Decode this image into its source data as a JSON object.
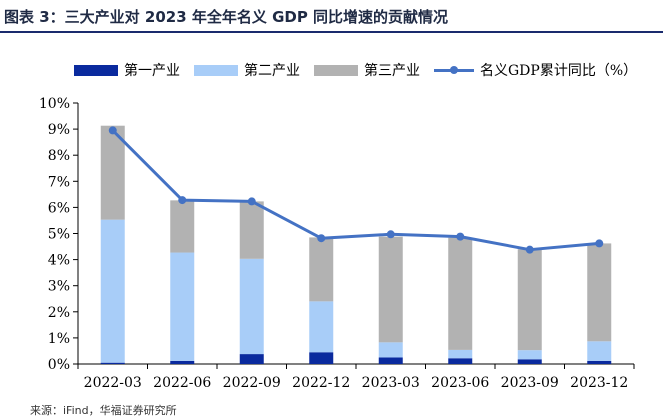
{
  "header": {
    "title": "图表 3：三大产业对 2023 年全年名义 GDP 同比增速的贡献情况"
  },
  "colors": {
    "primary": "#0a2a9e",
    "secondary": "#a8cdf8",
    "tertiary": "#b2b2b2",
    "line": "#4472c4",
    "rule": "#1a2b6d"
  },
  "chart_data": {
    "type": "bar",
    "stacked": true,
    "categories": [
      "2022-03",
      "2022-06",
      "2022-09",
      "2022-12",
      "2023-03",
      "2023-06",
      "2023-09",
      "2023-12"
    ],
    "series": [
      {
        "name": "第一产业",
        "type": "bar",
        "values": [
          0.05,
          0.12,
          0.38,
          0.45,
          0.25,
          0.22,
          0.18,
          0.12
        ]
      },
      {
        "name": "第二产业",
        "type": "bar",
        "values": [
          5.48,
          4.15,
          3.65,
          1.95,
          0.58,
          0.32,
          0.35,
          0.75
        ]
      },
      {
        "name": "第三产业",
        "type": "bar",
        "values": [
          3.6,
          2.0,
          2.2,
          2.45,
          4.05,
          4.3,
          3.87,
          3.75
        ]
      },
      {
        "name": "名义GDP累计同比（%）",
        "type": "line",
        "values": [
          8.95,
          6.28,
          6.23,
          4.82,
          4.97,
          4.88,
          4.38,
          4.62
        ]
      }
    ],
    "ylim": [
      0,
      10
    ],
    "yticks": [
      "0%",
      "1%",
      "2%",
      "3%",
      "4%",
      "5%",
      "6%",
      "7%",
      "8%",
      "9%",
      "10%"
    ],
    "xlabel": "",
    "ylabel": "",
    "legend_position": "top",
    "grid": false
  },
  "footer": {
    "source": "来源：iFind，华福证券研究所"
  }
}
